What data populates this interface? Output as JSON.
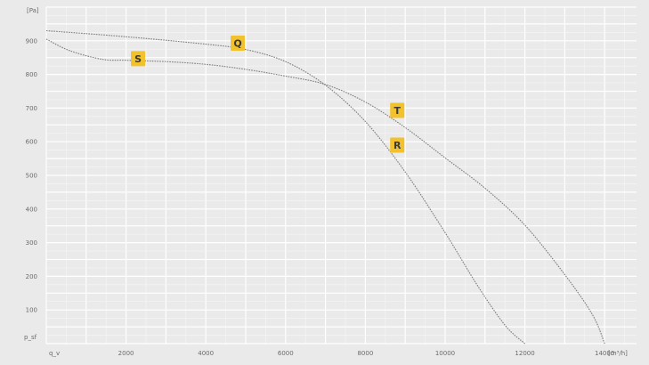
{
  "chart_data": {
    "type": "line",
    "ylabel": "[Pa]",
    "xlabel": "[m³/h]",
    "x_origin_label": "q_v",
    "y_origin_label": "p_sf",
    "xlim": [
      0,
      14800
    ],
    "ylim": [
      0,
      1000
    ],
    "x_ticks": [
      2000,
      4000,
      6000,
      8000,
      10000,
      12000,
      14000
    ],
    "y_ticks": [
      100,
      200,
      300,
      400,
      500,
      600,
      700,
      800,
      900
    ],
    "grid": true,
    "series": [
      {
        "name": "Q",
        "x": [
          0,
          2000,
          4000,
          5000,
          6000,
          7000,
          8000,
          9000,
          10000,
          10800,
          11500,
          12000
        ],
        "y": [
          930,
          912,
          890,
          874,
          838,
          768,
          660,
          510,
          330,
          175,
          55,
          0
        ]
      },
      {
        "name": "S",
        "x": [
          0,
          600,
          1400,
          2000,
          3000,
          4000,
          5000,
          6000,
          7000,
          8000,
          9000,
          10000,
          11000,
          12000,
          13000,
          13700,
          14000
        ],
        "y": [
          905,
          870,
          845,
          842,
          838,
          830,
          815,
          795,
          770,
          718,
          642,
          552,
          462,
          352,
          205,
          85,
          0
        ]
      }
    ],
    "annotations": [
      {
        "label": "Q",
        "x": 4800,
        "y": 893
      },
      {
        "label": "S",
        "x": 2300,
        "y": 847
      },
      {
        "label": "T",
        "x": 8800,
        "y": 693
      },
      {
        "label": "R",
        "x": 8800,
        "y": 590
      }
    ]
  }
}
